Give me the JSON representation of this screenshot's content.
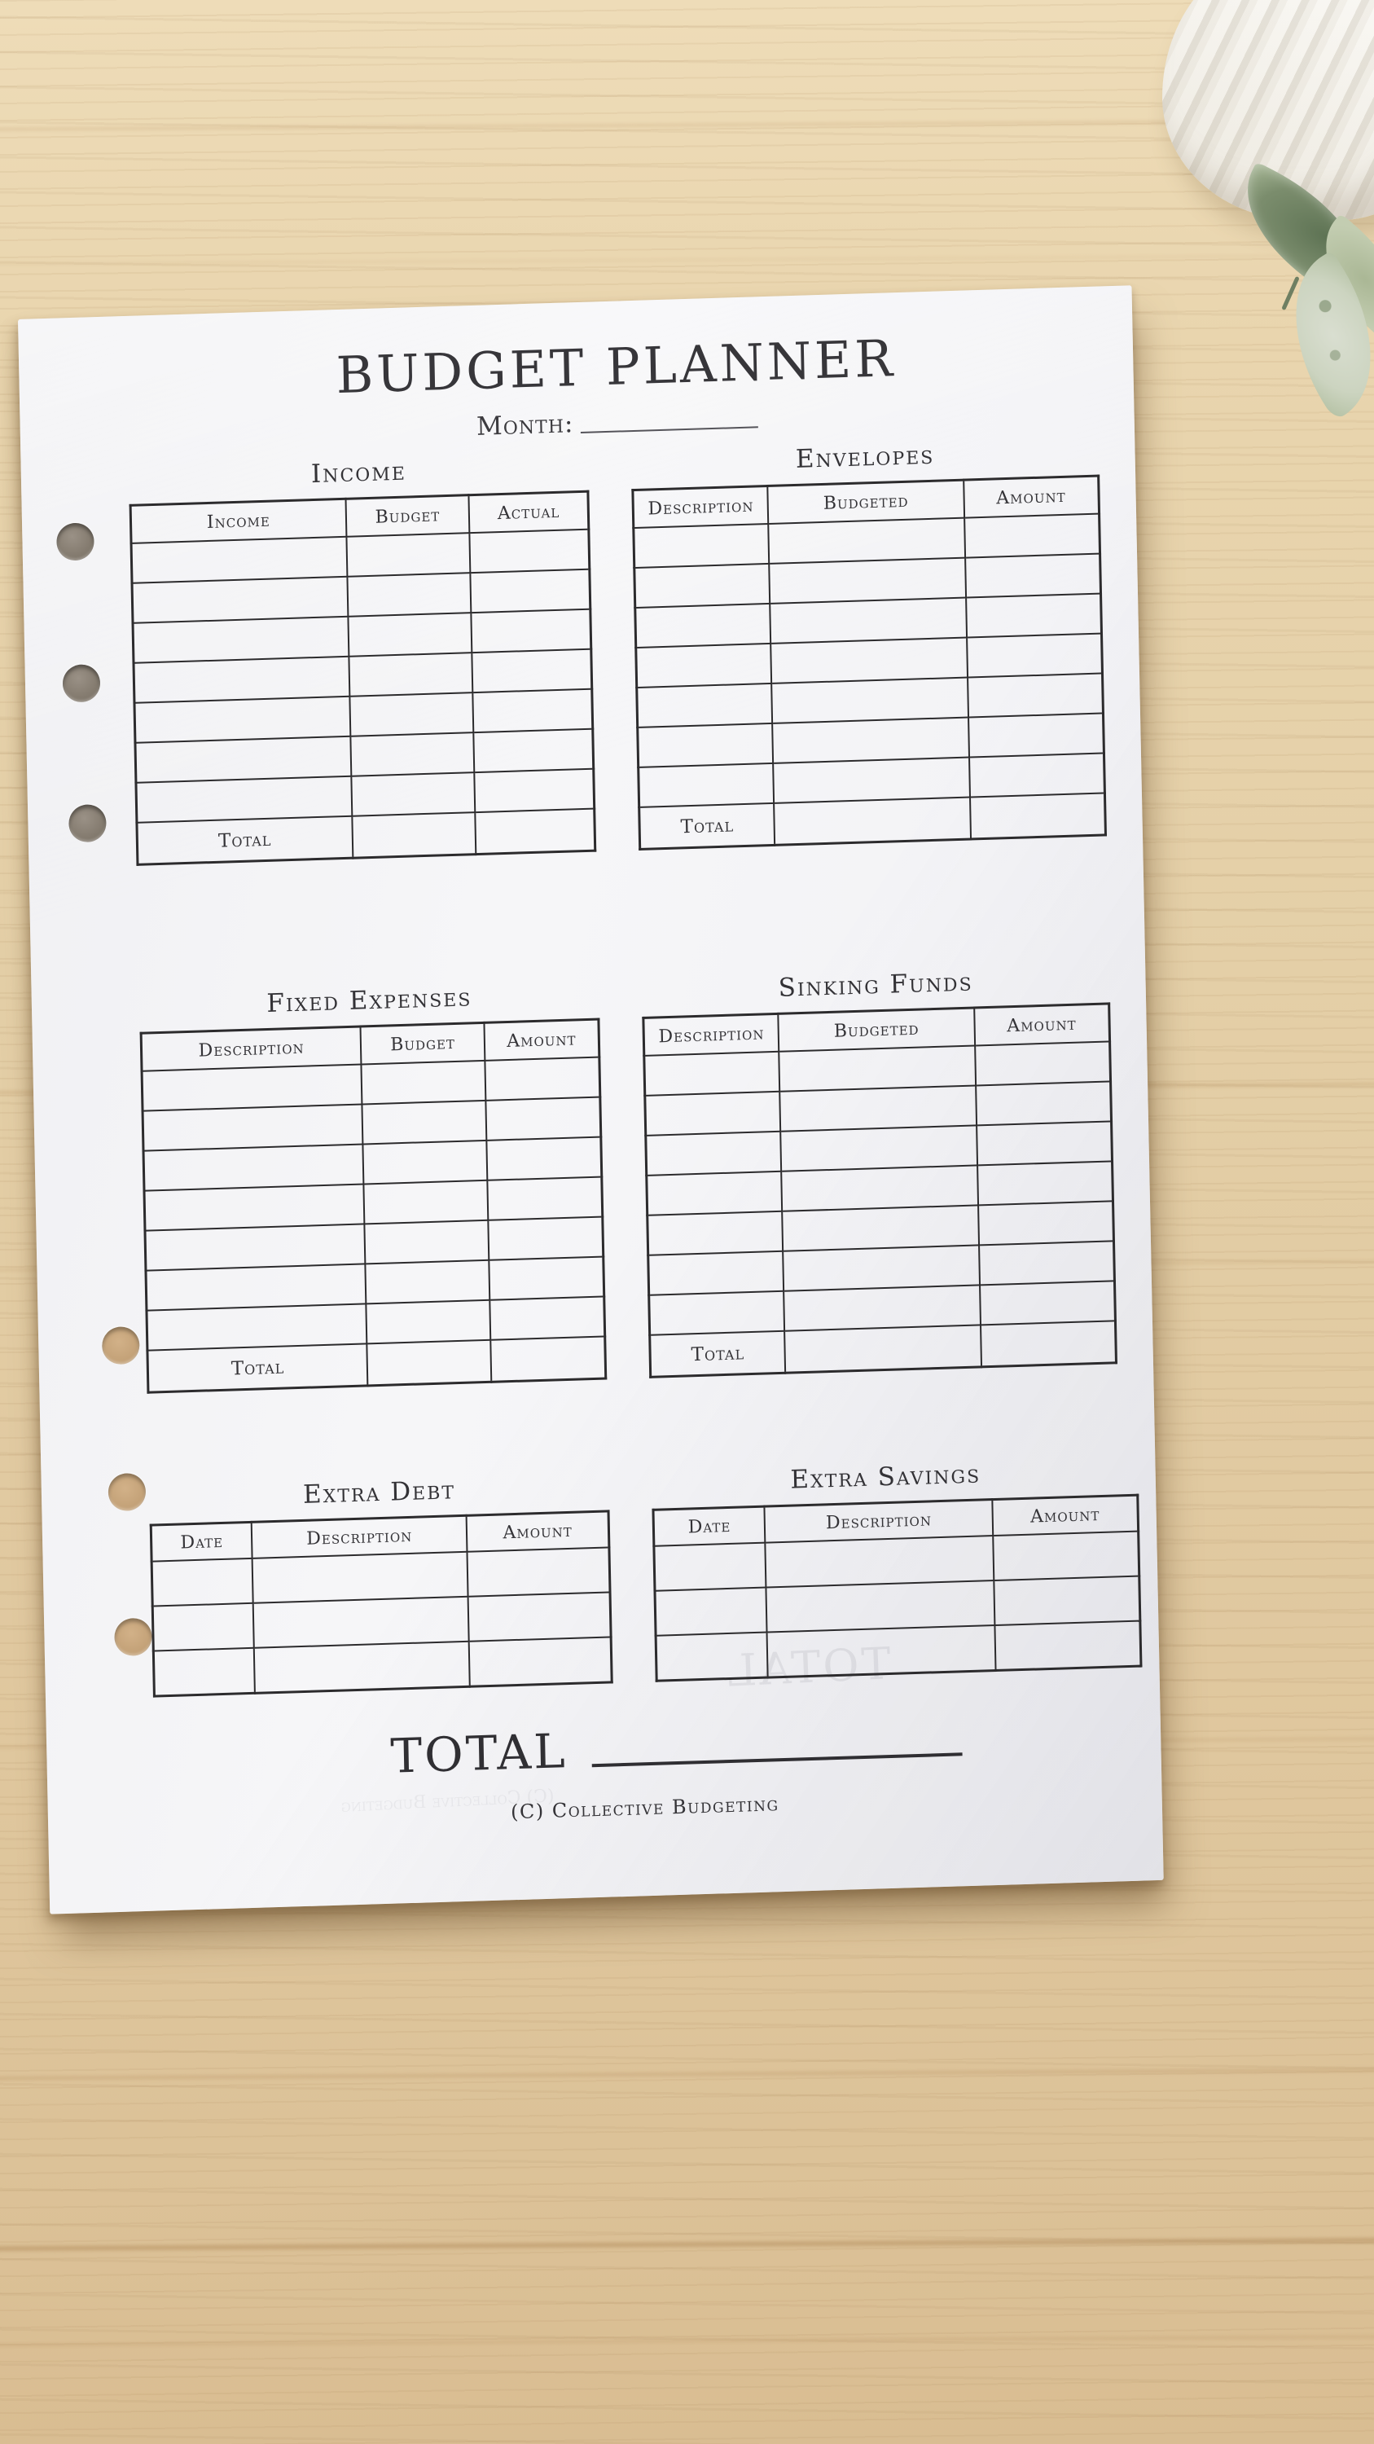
{
  "scene": {
    "desk_wood_color": "#e3cda4",
    "paper_color": "#f4f4f6",
    "ink_color": "#2e2d30",
    "leaf_green_color": "#7b8d6d",
    "pot_white_color": "#f5f3ee"
  },
  "page": {
    "title": "BUDGET PLANNER",
    "month_label": "Month:",
    "grand_total_label": "TOTAL",
    "footer_credit": "(C) Collective Budgeting",
    "ghost_total": "TOTAL",
    "ghost_footer": "(C) Collective Budgeting"
  },
  "sections": [
    {
      "id": "income",
      "title": "Income",
      "columns": [
        "Income",
        "Budget",
        "Actual"
      ],
      "empty_rows": 7,
      "total_label": "Total"
    },
    {
      "id": "envelopes",
      "title": "Envelopes",
      "columns": [
        "Description",
        "Budgeted",
        "Amount"
      ],
      "empty_rows": 7,
      "total_label": "Total"
    },
    {
      "id": "fixed-expenses",
      "title": "Fixed Expenses",
      "columns": [
        "Description",
        "Budget",
        "Amount"
      ],
      "empty_rows": 7,
      "total_label": "Total"
    },
    {
      "id": "sinking-funds",
      "title": "Sinking Funds",
      "columns": [
        "Description",
        "Budgeted",
        "Amount"
      ],
      "empty_rows": 7,
      "total_label": "Total"
    },
    {
      "id": "extra-debt",
      "title": "Extra Debt",
      "columns": [
        "Date",
        "Description",
        "Amount"
      ],
      "empty_rows": 3,
      "total_label": null
    },
    {
      "id": "extra-savings",
      "title": "Extra Savings",
      "columns": [
        "Date",
        "Description",
        "Amount"
      ],
      "empty_rows": 3,
      "total_label": null
    }
  ]
}
